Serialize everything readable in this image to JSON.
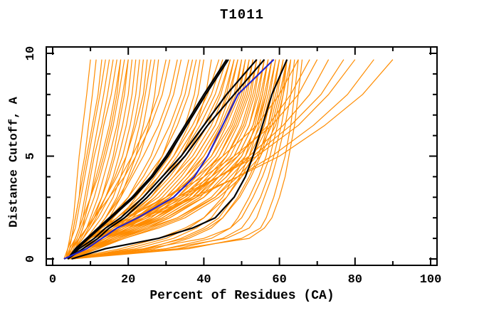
{
  "chart_data": {
    "type": "line",
    "title": "T1011",
    "xlabel": "Percent of Residues (CA)",
    "ylabel": "Distance Cutoff, A",
    "xlim": [
      0,
      100
    ],
    "ylim": [
      0,
      10
    ],
    "grid": false,
    "legend": "none",
    "x_major_ticks": [
      0,
      20,
      40,
      60,
      80,
      100
    ],
    "x_minor_ticks": [
      10,
      30,
      50,
      70,
      90
    ],
    "y_major_ticks": [
      0,
      5,
      10
    ],
    "y_minor_ticks": [
      1,
      2,
      3,
      4,
      6,
      7,
      8,
      9
    ],
    "colors": {
      "orange": "#FF8C00",
      "black": "#000000",
      "blue": "#2222CC"
    },
    "y_anchors": [
      0,
      0.5,
      1,
      1.5,
      2,
      3,
      4,
      5,
      6.5,
      8,
      9.7
    ],
    "series_groups": [
      {
        "name": "predictions-orange",
        "color": "#FF8C00",
        "stroke_width": 1.2,
        "curves": [
          [
            3,
            4,
            4.5,
            5,
            5.5,
            6,
            6.5,
            7,
            8,
            9,
            10
          ],
          [
            3.5,
            4,
            5,
            5.5,
            6,
            7,
            7.5,
            8.5,
            9.5,
            10.5,
            11.5
          ],
          [
            4,
            4.5,
            5,
            5.5,
            6,
            7,
            8,
            9,
            10.5,
            12,
            13
          ],
          [
            3.5,
            4,
            5,
            6,
            6.5,
            7.5,
            8.5,
            9.5,
            11,
            12.5,
            14
          ],
          [
            4,
            5,
            6,
            7,
            7.5,
            8.5,
            9.5,
            10.5,
            12,
            13.5,
            15
          ],
          [
            4,
            5,
            6,
            7,
            8,
            9,
            10,
            11,
            13,
            14.5,
            16
          ],
          [
            5,
            6,
            7,
            8,
            8.5,
            10,
            11,
            12,
            13.5,
            15.5,
            17
          ],
          [
            4,
            5,
            6.5,
            7.5,
            8.5,
            10,
            11.5,
            13,
            15,
            16.5,
            18
          ],
          [
            3.5,
            4.5,
            6,
            7,
            8,
            10,
            12,
            13.5,
            15.5,
            17,
            18
          ],
          [
            4,
            5.5,
            7,
            8,
            9,
            11,
            12.5,
            14,
            16,
            17.5,
            19
          ],
          [
            4,
            6,
            7.5,
            9,
            10,
            12,
            13.5,
            15,
            17,
            18.5,
            20
          ],
          [
            5,
            6,
            8,
            9.5,
            11,
            13,
            14.5,
            16,
            17.5,
            19,
            20
          ],
          [
            4,
            5,
            7,
            9,
            10.5,
            13,
            15,
            16.5,
            18.5,
            20,
            21
          ],
          [
            4,
            6,
            8,
            10,
            11.5,
            14,
            16,
            17.5,
            19.5,
            21,
            22
          ],
          [
            3.5,
            5,
            7,
            9,
            11,
            14,
            16.5,
            18.5,
            20.5,
            22,
            23
          ],
          [
            4,
            6,
            9,
            11,
            13,
            16,
            18,
            19.5,
            21.5,
            23,
            24
          ],
          [
            4,
            5,
            7,
            9,
            11,
            14,
            17,
            19.5,
            22,
            24,
            25
          ],
          [
            4,
            7,
            10,
            12,
            14,
            17,
            19,
            21,
            23,
            24.5,
            26
          ],
          [
            5,
            7,
            10,
            13,
            15,
            18,
            20,
            22,
            24,
            25.5,
            27
          ],
          [
            4,
            6,
            9,
            12,
            14,
            17.5,
            20.5,
            23,
            25.5,
            27,
            28
          ],
          [
            4,
            6,
            8,
            10,
            12,
            15,
            18,
            21,
            25,
            28,
            30
          ],
          [
            4,
            5,
            7,
            9,
            11,
            15,
            19,
            22,
            26,
            29,
            31
          ],
          [
            4,
            7,
            10,
            12,
            14,
            18,
            21,
            24,
            28,
            31,
            33
          ],
          [
            5,
            8,
            11,
            14,
            16,
            20,
            23,
            26,
            29,
            32,
            34
          ],
          [
            4,
            6,
            9,
            12,
            15,
            20,
            24,
            27,
            31,
            34,
            36
          ],
          [
            4,
            8,
            12,
            15,
            18,
            22,
            26,
            29,
            32,
            35,
            37
          ],
          [
            5,
            7,
            10,
            13,
            16,
            21,
            25,
            29,
            33,
            36,
            38
          ],
          [
            4,
            6,
            9,
            13,
            17,
            23,
            27,
            31,
            35,
            37.5,
            39
          ],
          [
            4,
            8,
            12,
            16,
            19,
            24,
            28,
            32,
            36,
            38.5,
            40
          ],
          [
            5,
            9,
            13,
            17,
            20,
            26,
            30,
            34,
            38,
            40.5,
            42
          ],
          [
            4,
            7,
            10,
            14,
            17,
            23,
            28,
            32,
            37,
            41,
            44
          ],
          [
            4,
            6,
            9,
            13,
            17,
            24,
            29,
            33,
            38,
            42,
            45
          ],
          [
            5,
            8,
            12,
            15,
            19,
            25,
            30,
            34,
            39,
            43,
            46
          ],
          [
            4,
            7,
            11,
            15,
            19,
            26,
            31,
            35,
            40,
            44,
            47
          ],
          [
            4,
            9,
            13,
            17,
            21,
            27,
            32,
            36,
            41,
            44.5,
            47
          ],
          [
            5,
            8,
            12,
            16,
            20,
            27,
            32,
            37,
            42,
            45.5,
            48
          ],
          [
            4,
            6,
            10,
            15,
            20,
            28,
            33,
            38,
            43,
            46,
            48
          ],
          [
            4,
            8,
            13,
            18,
            22,
            29,
            34,
            38,
            43,
            46.5,
            49
          ],
          [
            5,
            9,
            14,
            18,
            23,
            30,
            35,
            39,
            44,
            47,
            49
          ],
          [
            4,
            7,
            12,
            17,
            22,
            30,
            35,
            40,
            44.5,
            48,
            50
          ],
          [
            4,
            10,
            15,
            20,
            24,
            31,
            36,
            40,
            45,
            48.5,
            50
          ],
          [
            5,
            8,
            13,
            18,
            23,
            31,
            36,
            41,
            45.5,
            49,
            51
          ],
          [
            4,
            9,
            14,
            19,
            25,
            32,
            37,
            42,
            46,
            49.5,
            51
          ],
          [
            4,
            7,
            11,
            16,
            22,
            31,
            37,
            42,
            47,
            50,
            52
          ],
          [
            5,
            10,
            15,
            21,
            26,
            33,
            38,
            43,
            47.5,
            50.5,
            52
          ],
          [
            4,
            8,
            13,
            19,
            24,
            33,
            39,
            44,
            48,
            51,
            53
          ],
          [
            4,
            11,
            16,
            22,
            27,
            35,
            40,
            44,
            48.5,
            51.5,
            53
          ],
          [
            5,
            9,
            14,
            20,
            26,
            34,
            40,
            45,
            49,
            52,
            54
          ],
          [
            4,
            8,
            14,
            21,
            27,
            36,
            41,
            46,
            50,
            52.5,
            54
          ],
          [
            4,
            10,
            16,
            22,
            28,
            36,
            42,
            46,
            50.5,
            53,
            55
          ],
          [
            5,
            9,
            15,
            21,
            28,
            37,
            42,
            47,
            51,
            53.5,
            55
          ],
          [
            4,
            11,
            17,
            23,
            29,
            38,
            43,
            48,
            52,
            54,
            56
          ],
          [
            4,
            8,
            14,
            20,
            27,
            37,
            43,
            48,
            52,
            54.5,
            56
          ],
          [
            5,
            10,
            16,
            23,
            30,
            39,
            44,
            49,
            53,
            55,
            57
          ],
          [
            4,
            9,
            15,
            22,
            29,
            38,
            44,
            49,
            53,
            55.5,
            57
          ],
          [
            4,
            12,
            18,
            25,
            31,
            40,
            45,
            50,
            54,
            56,
            58
          ],
          [
            5,
            10,
            17,
            24,
            31,
            40,
            46,
            50,
            54,
            56.5,
            58
          ],
          [
            4,
            9,
            16,
            23,
            30,
            40,
            46,
            51,
            55,
            57,
            59
          ],
          [
            4,
            11,
            18,
            26,
            33,
            42,
            47,
            52,
            56,
            58,
            60
          ],
          [
            5,
            12,
            19,
            27,
            34,
            43,
            48,
            53,
            57,
            59,
            61
          ],
          [
            4,
            10,
            17,
            25,
            33,
            43,
            49,
            54,
            58,
            60,
            62
          ],
          [
            4,
            11,
            19,
            28,
            35,
            44,
            50,
            55,
            59,
            61,
            63
          ],
          [
            4,
            7,
            10,
            15,
            20,
            30,
            38,
            45,
            54,
            60,
            65
          ],
          [
            5,
            8,
            12,
            17,
            23,
            33,
            42,
            49,
            57,
            63,
            68
          ],
          [
            4,
            6,
            9,
            14,
            19,
            30,
            40,
            48,
            58,
            65,
            70
          ],
          [
            4,
            8,
            13,
            18,
            24,
            35,
            44,
            52,
            61,
            68,
            73
          ],
          [
            5,
            7,
            11,
            16,
            22,
            34,
            44,
            53,
            63,
            71,
            77
          ],
          [
            4,
            6,
            10,
            15,
            21,
            33,
            44,
            54,
            65,
            73,
            80
          ],
          [
            4,
            8,
            12,
            18,
            25,
            38,
            49,
            58,
            69,
            78,
            85
          ],
          [
            5,
            7,
            11,
            17,
            24,
            37,
            49,
            60,
            72,
            82,
            90
          ],
          [
            5,
            20,
            30,
            36,
            40,
            45,
            48,
            51,
            53.5,
            55.5,
            57
          ],
          [
            4,
            22,
            32,
            38,
            42,
            46,
            49.5,
            52,
            54.5,
            56.5,
            58
          ],
          [
            5,
            25,
            34,
            40,
            44,
            48,
            51,
            53,
            55.5,
            57.5,
            59
          ],
          [
            4,
            18,
            28,
            35,
            40,
            46,
            50,
            53,
            56,
            58,
            60
          ],
          [
            5,
            27,
            36,
            42,
            45,
            49,
            52,
            54.5,
            57,
            58.5,
            60
          ],
          [
            4,
            24,
            35,
            41,
            45,
            49.5,
            52.5,
            55,
            57.5,
            59.5,
            61
          ],
          [
            5,
            30,
            42,
            47,
            49,
            52,
            54.5,
            56.5,
            58.5,
            60.5,
            62
          ],
          [
            4,
            25,
            40,
            47,
            50,
            53,
            55.5,
            57.5,
            59.5,
            61,
            62
          ],
          [
            5,
            33,
            45,
            50,
            52,
            55,
            57,
            58.5,
            60.5,
            62,
            63
          ],
          [
            4,
            30,
            46,
            52,
            54,
            56,
            58,
            59.5,
            61.5,
            63,
            64
          ],
          [
            5,
            36,
            50,
            55,
            56.5,
            58.5,
            60,
            61.5,
            63,
            64,
            65
          ],
          [
            4,
            34,
            52,
            56,
            58,
            60,
            61.5,
            62.5,
            64,
            65,
            66
          ]
        ]
      },
      {
        "name": "highlight-black",
        "color": "#000000",
        "stroke_width": 2.2,
        "curves": [
          [
            4,
            6,
            9,
            12,
            15,
            21,
            26,
            30,
            35,
            40,
            46
          ],
          [
            4,
            6.5,
            9.5,
            12.5,
            15.5,
            21.5,
            26.5,
            30.5,
            35.5,
            40.5,
            46.5
          ],
          [
            4,
            7,
            11,
            14,
            18,
            24,
            29,
            34,
            40,
            46,
            54
          ],
          [
            4,
            8,
            12,
            15,
            19,
            25,
            30,
            35,
            41,
            48,
            56
          ],
          [
            5,
            14,
            28,
            37,
            43,
            48,
            51,
            53,
            55.5,
            58,
            62
          ]
        ]
      },
      {
        "name": "highlight-blue",
        "color": "#2222CC",
        "stroke_width": 2.2,
        "curves": [
          [
            3,
            9,
            13,
            17,
            22.5,
            32,
            37.5,
            41,
            45,
            49,
            58.5
          ]
        ]
      }
    ]
  }
}
